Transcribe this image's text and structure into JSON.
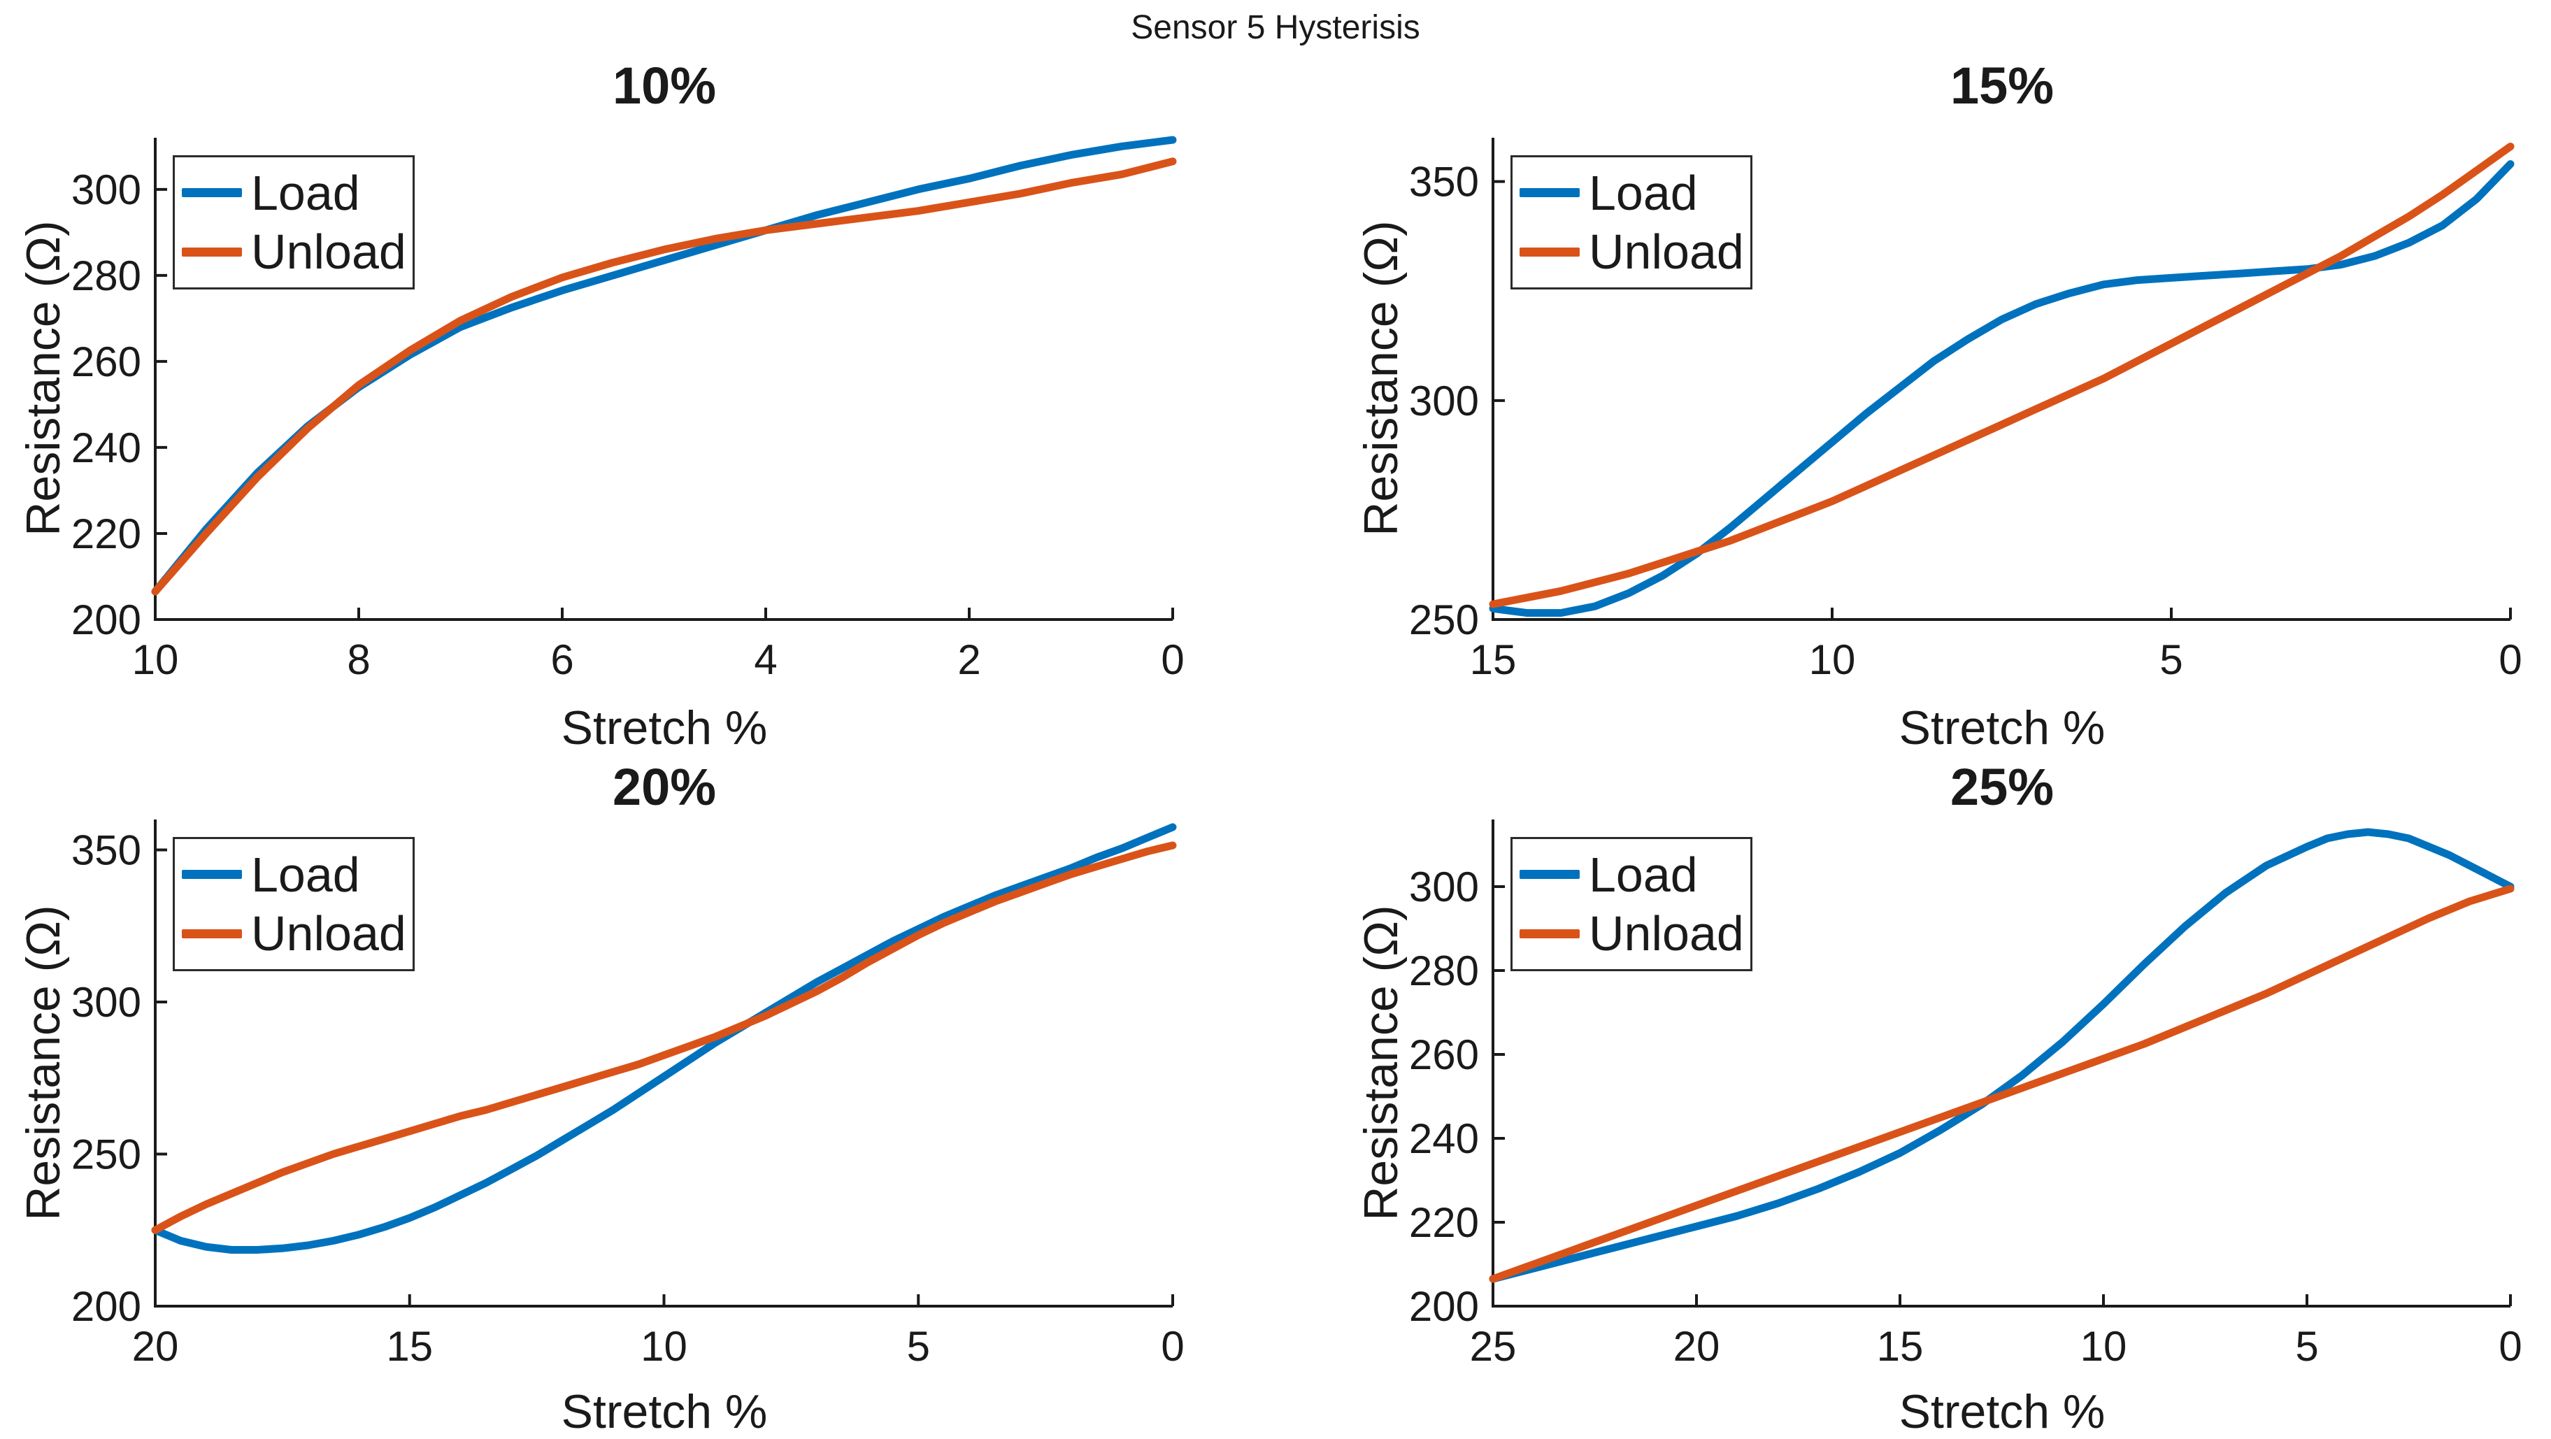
{
  "figure": {
    "title": "Sensor 5 Hysterisis",
    "colors": {
      "load": "#0072BD",
      "unload": "#D95319",
      "axis": "#1a1a1a"
    }
  },
  "legend": {
    "load_label": "Load",
    "unload_label": "Unload",
    "position": "top-left"
  },
  "chart_data": [
    {
      "type": "line",
      "title": "10%",
      "xlabel": "Stretch %",
      "ylabel": "Resistance (Ω)",
      "x_reversed": true,
      "xlim": [
        0,
        10
      ],
      "ylim": [
        200,
        312
      ],
      "xticks": [
        10,
        8,
        6,
        4,
        2,
        0
      ],
      "yticks": [
        200,
        220,
        240,
        260,
        280,
        300
      ],
      "grid": false,
      "legend_position": "top-left",
      "series": [
        {
          "name": "Load",
          "color": "#0072BD",
          "points": [
            [
              10,
              206.5
            ],
            [
              9.5,
              221
            ],
            [
              9,
              234
            ],
            [
              8.5,
              245
            ],
            [
              8,
              254
            ],
            [
              7.5,
              261.5
            ],
            [
              7,
              268
            ],
            [
              6.5,
              272.5
            ],
            [
              6,
              276.5
            ],
            [
              5.5,
              280
            ],
            [
              5,
              283.5
            ],
            [
              4.5,
              287
            ],
            [
              4,
              290.5
            ],
            [
              3.5,
              294
            ],
            [
              3,
              297
            ],
            [
              2.5,
              300
            ],
            [
              2,
              302.5
            ],
            [
              1.5,
              305.5
            ],
            [
              1,
              308
            ],
            [
              0.5,
              310
            ],
            [
              0,
              311.5
            ]
          ]
        },
        {
          "name": "Unload",
          "color": "#D95319",
          "points": [
            [
              10,
              206.5
            ],
            [
              9.5,
              220
            ],
            [
              9,
              233
            ],
            [
              8.5,
              244.5
            ],
            [
              8,
              254.5
            ],
            [
              7.5,
              262.5
            ],
            [
              7,
              269.5
            ],
            [
              6.5,
              275
            ],
            [
              6,
              279.5
            ],
            [
              5.5,
              283
            ],
            [
              5,
              286
            ],
            [
              4.5,
              288.5
            ],
            [
              4,
              290.5
            ],
            [
              3.5,
              292
            ],
            [
              3,
              293.5
            ],
            [
              2.5,
              295
            ],
            [
              2,
              297
            ],
            [
              1.5,
              299
            ],
            [
              1,
              301.5
            ],
            [
              0.5,
              303.5
            ],
            [
              0,
              306.5
            ]
          ]
        }
      ]
    },
    {
      "type": "line",
      "title": "15%",
      "xlabel": "Stretch %",
      "ylabel": "Resistance (Ω)",
      "x_reversed": true,
      "xlim": [
        0,
        15
      ],
      "ylim": [
        250,
        360
      ],
      "xticks": [
        15,
        10,
        5,
        0
      ],
      "yticks": [
        250,
        300,
        350
      ],
      "grid": false,
      "legend_position": "top-left",
      "series": [
        {
          "name": "Load",
          "color": "#0072BD",
          "points": [
            [
              15,
              252.5
            ],
            [
              14.5,
              251.5
            ],
            [
              14,
              251.5
            ],
            [
              13.5,
              253
            ],
            [
              13,
              256
            ],
            [
              12.5,
              260
            ],
            [
              12,
              265
            ],
            [
              11.5,
              271
            ],
            [
              11,
              277.5
            ],
            [
              10.5,
              284
            ],
            [
              10,
              290.5
            ],
            [
              9.5,
              297
            ],
            [
              9,
              303
            ],
            [
              8.5,
              309
            ],
            [
              8,
              314
            ],
            [
              7.5,
              318.5
            ],
            [
              7,
              322
            ],
            [
              6.5,
              324.5
            ],
            [
              6,
              326.5
            ],
            [
              5.5,
              327.5
            ],
            [
              5,
              328
            ],
            [
              4.5,
              328.5
            ],
            [
              4,
              329
            ],
            [
              3.5,
              329.5
            ],
            [
              3,
              330
            ],
            [
              2.5,
              331
            ],
            [
              2,
              333
            ],
            [
              1.5,
              336
            ],
            [
              1,
              340
            ],
            [
              0.5,
              346
            ],
            [
              0,
              354
            ]
          ]
        },
        {
          "name": "Unload",
          "color": "#D95319",
          "points": [
            [
              15,
              253.5
            ],
            [
              14.5,
              255
            ],
            [
              14,
              256.5
            ],
            [
              13.5,
              258.5
            ],
            [
              13,
              260.5
            ],
            [
              12.5,
              263
            ],
            [
              12,
              265.5
            ],
            [
              11.5,
              268
            ],
            [
              11,
              271
            ],
            [
              10.5,
              274
            ],
            [
              10,
              277
            ],
            [
              9.5,
              280.5
            ],
            [
              9,
              284
            ],
            [
              8.5,
              287.5
            ],
            [
              8,
              291
            ],
            [
              7.5,
              294.5
            ],
            [
              7,
              298
            ],
            [
              6.5,
              301.5
            ],
            [
              6,
              305
            ],
            [
              5.5,
              309
            ],
            [
              5,
              313
            ],
            [
              4.5,
              317
            ],
            [
              4,
              321
            ],
            [
              3.5,
              325
            ],
            [
              3,
              329
            ],
            [
              2.5,
              333
            ],
            [
              2,
              337.5
            ],
            [
              1.5,
              342
            ],
            [
              1,
              347
            ],
            [
              0.5,
              352.5
            ],
            [
              0,
              358
            ]
          ]
        }
      ]
    },
    {
      "type": "line",
      "title": "20%",
      "xlabel": "Stretch %",
      "ylabel": "Resistance (Ω)",
      "x_reversed": true,
      "xlim": [
        0,
        20
      ],
      "ylim": [
        200,
        360
      ],
      "xticks": [
        20,
        15,
        10,
        5,
        0
      ],
      "yticks": [
        200,
        250,
        300,
        350
      ],
      "grid": false,
      "legend_position": "top-left",
      "series": [
        {
          "name": "Load",
          "color": "#0072BD",
          "points": [
            [
              20,
              225
            ],
            [
              19.5,
              221.5
            ],
            [
              19,
              219.5
            ],
            [
              18.5,
              218.5
            ],
            [
              18,
              218.5
            ],
            [
              17.5,
              219
            ],
            [
              17,
              220
            ],
            [
              16.5,
              221.5
            ],
            [
              16,
              223.5
            ],
            [
              15.5,
              226
            ],
            [
              15,
              229
            ],
            [
              14.5,
              232.5
            ],
            [
              14,
              236.5
            ],
            [
              13.5,
              240.5
            ],
            [
              13,
              245
            ],
            [
              12.5,
              249.5
            ],
            [
              12,
              254.5
            ],
            [
              11.5,
              259.5
            ],
            [
              11,
              264.5
            ],
            [
              10.5,
              270
            ],
            [
              10,
              275.5
            ],
            [
              9.5,
              281
            ],
            [
              9,
              286.5
            ],
            [
              8.5,
              291.5
            ],
            [
              8,
              296.5
            ],
            [
              7.5,
              301.5
            ],
            [
              7,
              306.5
            ],
            [
              6.5,
              311
            ],
            [
              6,
              315.5
            ],
            [
              5.5,
              320
            ],
            [
              5,
              324
            ],
            [
              4.5,
              328
            ],
            [
              4,
              331.5
            ],
            [
              3.5,
              335
            ],
            [
              3,
              338
            ],
            [
              2.5,
              341
            ],
            [
              2,
              344
            ],
            [
              1.5,
              347.5
            ],
            [
              1,
              350.5
            ],
            [
              0.5,
              354
            ],
            [
              0,
              357.5
            ]
          ]
        },
        {
          "name": "Unload",
          "color": "#D95319",
          "points": [
            [
              20,
              225
            ],
            [
              19.5,
              229.5
            ],
            [
              19,
              233.5
            ],
            [
              18.5,
              237
            ],
            [
              18,
              240.5
            ],
            [
              17.5,
              244
            ],
            [
              17,
              247
            ],
            [
              16.5,
              250
            ],
            [
              16,
              252.5
            ],
            [
              15.5,
              255
            ],
            [
              15,
              257.5
            ],
            [
              14.5,
              260
            ],
            [
              14,
              262.5
            ],
            [
              13.5,
              264.5
            ],
            [
              13,
              267
            ],
            [
              12.5,
              269.5
            ],
            [
              12,
              272
            ],
            [
              11.5,
              274.5
            ],
            [
              11,
              277
            ],
            [
              10.5,
              279.5
            ],
            [
              10,
              282.5
            ],
            [
              9.5,
              285.5
            ],
            [
              9,
              288.5
            ],
            [
              8.5,
              292
            ],
            [
              8,
              295.5
            ],
            [
              7.5,
              299.5
            ],
            [
              7,
              303.5
            ],
            [
              6.5,
              308
            ],
            [
              6,
              313
            ],
            [
              5.5,
              317.5
            ],
            [
              5,
              322
            ],
            [
              4.5,
              326
            ],
            [
              4,
              329.5
            ],
            [
              3.5,
              333
            ],
            [
              3,
              336
            ],
            [
              2.5,
              339
            ],
            [
              2,
              342
            ],
            [
              1.5,
              344.5
            ],
            [
              1,
              347
            ],
            [
              0.5,
              349.5
            ],
            [
              0,
              351.5
            ]
          ]
        }
      ]
    },
    {
      "type": "line",
      "title": "25%",
      "xlabel": "Stretch %",
      "ylabel": "Resistance (Ω)",
      "x_reversed": true,
      "xlim": [
        0,
        25
      ],
      "ylim": [
        200,
        316
      ],
      "xticks": [
        25,
        20,
        15,
        10,
        5,
        0
      ],
      "yticks": [
        200,
        220,
        240,
        260,
        280,
        300
      ],
      "grid": false,
      "legend_position": "top-left",
      "series": [
        {
          "name": "Load",
          "color": "#0072BD",
          "points": [
            [
              25,
              206.5
            ],
            [
              24,
              209
            ],
            [
              23,
              211.5
            ],
            [
              22,
              214
            ],
            [
              21,
              216.5
            ],
            [
              20,
              219
            ],
            [
              19,
              221.5
            ],
            [
              18,
              224.5
            ],
            [
              17,
              228
            ],
            [
              16,
              232
            ],
            [
              15,
              236.5
            ],
            [
              14,
              242
            ],
            [
              13,
              248
            ],
            [
              12,
              255
            ],
            [
              11,
              263
            ],
            [
              10,
              272
            ],
            [
              9,
              281.5
            ],
            [
              8,
              290.5
            ],
            [
              7,
              298.5
            ],
            [
              6,
              305
            ],
            [
              5,
              309.5
            ],
            [
              4.5,
              311.5
            ],
            [
              4,
              312.5
            ],
            [
              3.5,
              313
            ],
            [
              3,
              312.5
            ],
            [
              2.5,
              311.5
            ],
            [
              2,
              309.5
            ],
            [
              1.5,
              307.5
            ],
            [
              1,
              305
            ],
            [
              0.5,
              302.5
            ],
            [
              0,
              300
            ]
          ]
        },
        {
          "name": "Unload",
          "color": "#D95319",
          "points": [
            [
              25,
              206.5
            ],
            [
              24,
              210
            ],
            [
              23,
              213.5
            ],
            [
              22,
              217
            ],
            [
              21,
              220.5
            ],
            [
              20,
              224
            ],
            [
              19,
              227.5
            ],
            [
              18,
              231
            ],
            [
              17,
              234.5
            ],
            [
              16,
              238
            ],
            [
              15,
              241.5
            ],
            [
              14,
              245
            ],
            [
              13,
              248.5
            ],
            [
              12,
              252
            ],
            [
              11,
              255.5
            ],
            [
              10,
              259
            ],
            [
              9,
              262.5
            ],
            [
              8,
              266.5
            ],
            [
              7,
              270.5
            ],
            [
              6,
              274.5
            ],
            [
              5,
              279
            ],
            [
              4,
              283.5
            ],
            [
              3,
              288
            ],
            [
              2,
              292.5
            ],
            [
              1,
              296.5
            ],
            [
              0,
              299.5
            ]
          ]
        }
      ]
    }
  ]
}
